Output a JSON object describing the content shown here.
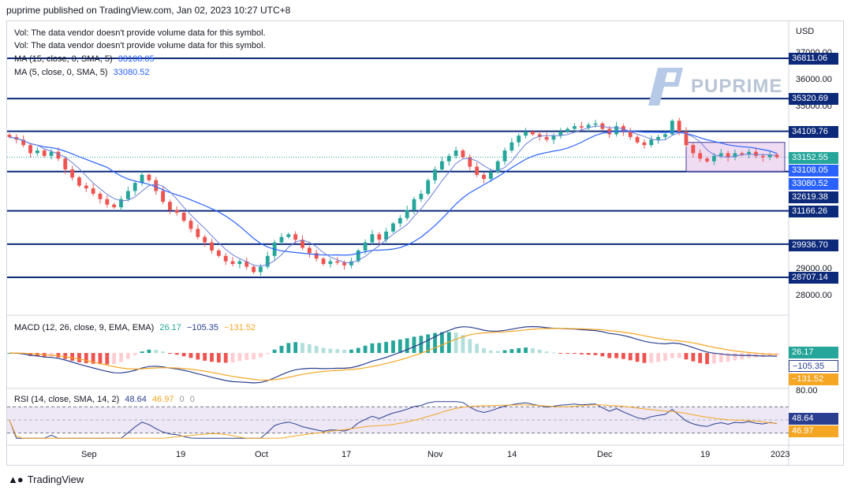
{
  "header": "puprime published on TradingView.com, Jan 02, 2023 10:27 UTC+8",
  "footer": {
    "brand": "TradingView",
    "logo": "tv-logo-icon"
  },
  "watermark": {
    "text": "PUPRIME"
  },
  "currency": "USD",
  "legend": {
    "vol1": "Vol: The data vendor doesn't provide volume data for this symbol.",
    "vol2": "Vol: The data vendor doesn't provide volume data for this symbol.",
    "ma15_label": "MA (15, close, 0, SMA, 5)",
    "ma15_value": "33108.05",
    "ma5_label": "MA (5, close, 0, SMA, 5)",
    "ma5_value": "33080.52",
    "macd_label": "MACD (12, 26, close, 9, EMA, EMA)",
    "macd_v1": "26.17",
    "macd_v2": "−105.35",
    "macd_v3": "−131.52",
    "rsi_label": "RSI (14, close, SMA, 14, 2)",
    "rsi_v1": "48.64",
    "rsi_v2": "46.97",
    "rsi_v3": "0",
    "rsi_v4": "0"
  },
  "colors": {
    "level_line": "#0d2a7a",
    "up": "#26a69a",
    "down": "#ef5350",
    "ma15": "#2962ff",
    "ma5": "#6c7fd8",
    "macd": "#2a3f8f",
    "signal": "#f5a623",
    "rsi": "#2a3f8f",
    "rsi_ma": "#f5a623",
    "band": "#ede7f6"
  },
  "chart_data": [
    {
      "type": "line",
      "name": "price",
      "price_axis_ticks": [
        "37000.00",
        "36000.00",
        "35000.00",
        "29000.00",
        "28000.00"
      ],
      "levels": [
        "36811.06",
        "35320.69",
        "34109.76",
        "31166.26",
        "29936.70",
        "28707.14"
      ],
      "price_tags": [
        {
          "value": "36811.06",
          "kind": "level"
        },
        {
          "value": "35320.69",
          "kind": "level"
        },
        {
          "value": "34109.76",
          "kind": "level"
        },
        {
          "value": "33152.55",
          "kind": "up"
        },
        {
          "value": "33108.05",
          "kind": "ma15"
        },
        {
          "value": "33080.52",
          "kind": "ma5"
        },
        {
          "value": "32619.38",
          "kind": "level"
        },
        {
          "value": "31166.26",
          "kind": "level"
        },
        {
          "value": "29936.70",
          "kind": "level"
        },
        {
          "value": "28707.14",
          "kind": "level"
        }
      ],
      "x_ticks": [
        "Sep",
        "19",
        "Oct",
        "17",
        "Nov",
        "14",
        "Dec",
        "19",
        "2023"
      ],
      "close": [
        33900,
        33800,
        33600,
        33300,
        33400,
        33200,
        33350,
        33100,
        32700,
        32400,
        32100,
        32000,
        31800,
        31600,
        31400,
        31300,
        31600,
        31900,
        32200,
        32500,
        32300,
        31900,
        31500,
        31200,
        31100,
        30800,
        30500,
        30200,
        30000,
        29700,
        29500,
        29300,
        29200,
        29300,
        29100,
        28900,
        29100,
        29500,
        30000,
        30200,
        30300,
        30100,
        29800,
        29600,
        29400,
        29200,
        29300,
        29250,
        29150,
        29300,
        29700,
        30000,
        30300,
        30100,
        30400,
        30700,
        30900,
        31200,
        31600,
        31800,
        32300,
        32700,
        33000,
        33200,
        33400,
        33150,
        32800,
        32500,
        32350,
        32600,
        33000,
        33400,
        33700,
        33950,
        34100,
        34000,
        33900,
        33800,
        33950,
        34100,
        34200,
        34300,
        34250,
        34350,
        34400,
        34200,
        34000,
        34300,
        34100,
        33900,
        33700,
        33600,
        33800,
        33900,
        34000,
        34500,
        34100,
        33600,
        33300,
        33100,
        33000,
        33200,
        33300,
        33150,
        33300,
        33250,
        33350,
        33200,
        33150,
        33250,
        33152
      ]
    },
    {
      "type": "line",
      "name": "MACD",
      "values_shown": [
        "26.17",
        "−105.35",
        "−131.52"
      ]
    },
    {
      "type": "line",
      "name": "RSI",
      "values_shown": [
        "48.64",
        "46.97"
      ],
      "axis_ticks": [
        "80.00"
      ],
      "band": [
        30,
        70
      ]
    }
  ]
}
